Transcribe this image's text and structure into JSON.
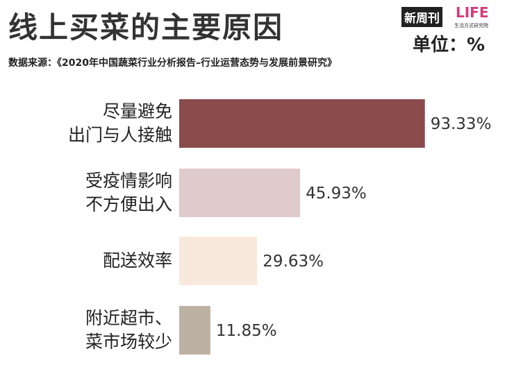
{
  "chart_data": {
    "type": "bar",
    "orientation": "horizontal",
    "title": "线上买菜的主要原因",
    "subtitle": "数据来源：《2020年中国蔬菜行业分析报告–行业运营态势与发展前景研究》",
    "unit_label": "单位：%",
    "logos": {
      "left": "新周刊",
      "right": "LIFE",
      "right_caption": "生活方式研究院"
    },
    "categories": [
      "尽量避免\n出门与人接触",
      "受疫情影响\n不方便出入",
      "配送效率",
      "附近超市、\n菜市场较少"
    ],
    "values": [
      93.33,
      45.93,
      29.63,
      11.85
    ],
    "value_labels": [
      "93.33%",
      "45.93%",
      "29.63%",
      "11.85%"
    ],
    "colors": [
      "#8a4b4d",
      "#dfcbcc",
      "#f9e9dc",
      "#bdb1a4"
    ]
  }
}
